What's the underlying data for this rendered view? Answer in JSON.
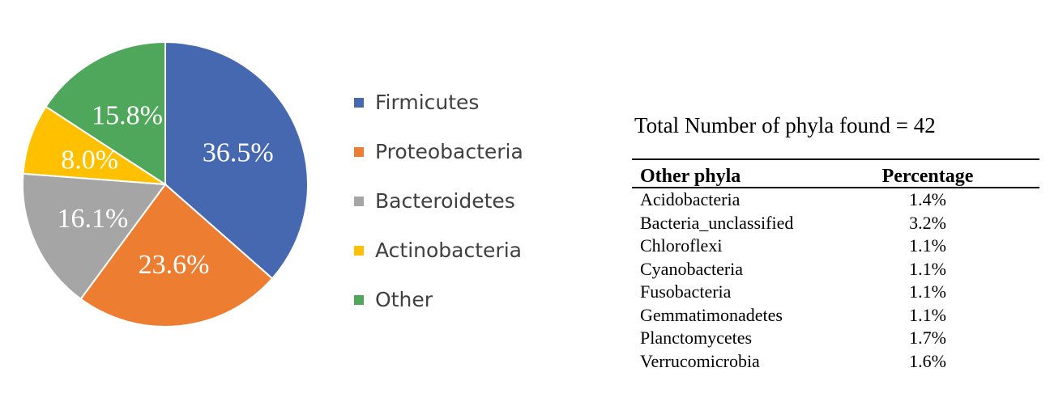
{
  "chart_data": {
    "type": "pie",
    "categories": [
      "Firmicutes",
      "Proteobacteria",
      "Bacteroidetes",
      "Actinobacteria",
      "Other"
    ],
    "values": [
      36.5,
      23.6,
      16.1,
      8.0,
      15.8
    ],
    "labels": [
      "36.5%",
      "23.6%",
      "16.1%",
      "8.0%",
      "15.8%"
    ],
    "colors": [
      "#4668B0",
      "#ED7D31",
      "#A5A5A5",
      "#FFC000",
      "#4EA75A"
    ],
    "start": "top",
    "direction": "clockwise",
    "legend_position": "right"
  },
  "table": {
    "title": "Total Number of phyla found = 42",
    "headers": [
      "Other phyla",
      "Percentage"
    ],
    "rows": [
      [
        "Acidobacteria",
        "1.4%"
      ],
      [
        "Bacteria_unclassified",
        "3.2%"
      ],
      [
        "Chloroflexi",
        "1.1%"
      ],
      [
        "Cyanobacteria",
        "1.1%"
      ],
      [
        "Fusobacteria",
        "1.1%"
      ],
      [
        "Gemmatimonadetes",
        "1.1%"
      ],
      [
        "Planctomycetes",
        "1.7%"
      ],
      [
        "Verrucomicrobia",
        "1.6%"
      ]
    ]
  }
}
